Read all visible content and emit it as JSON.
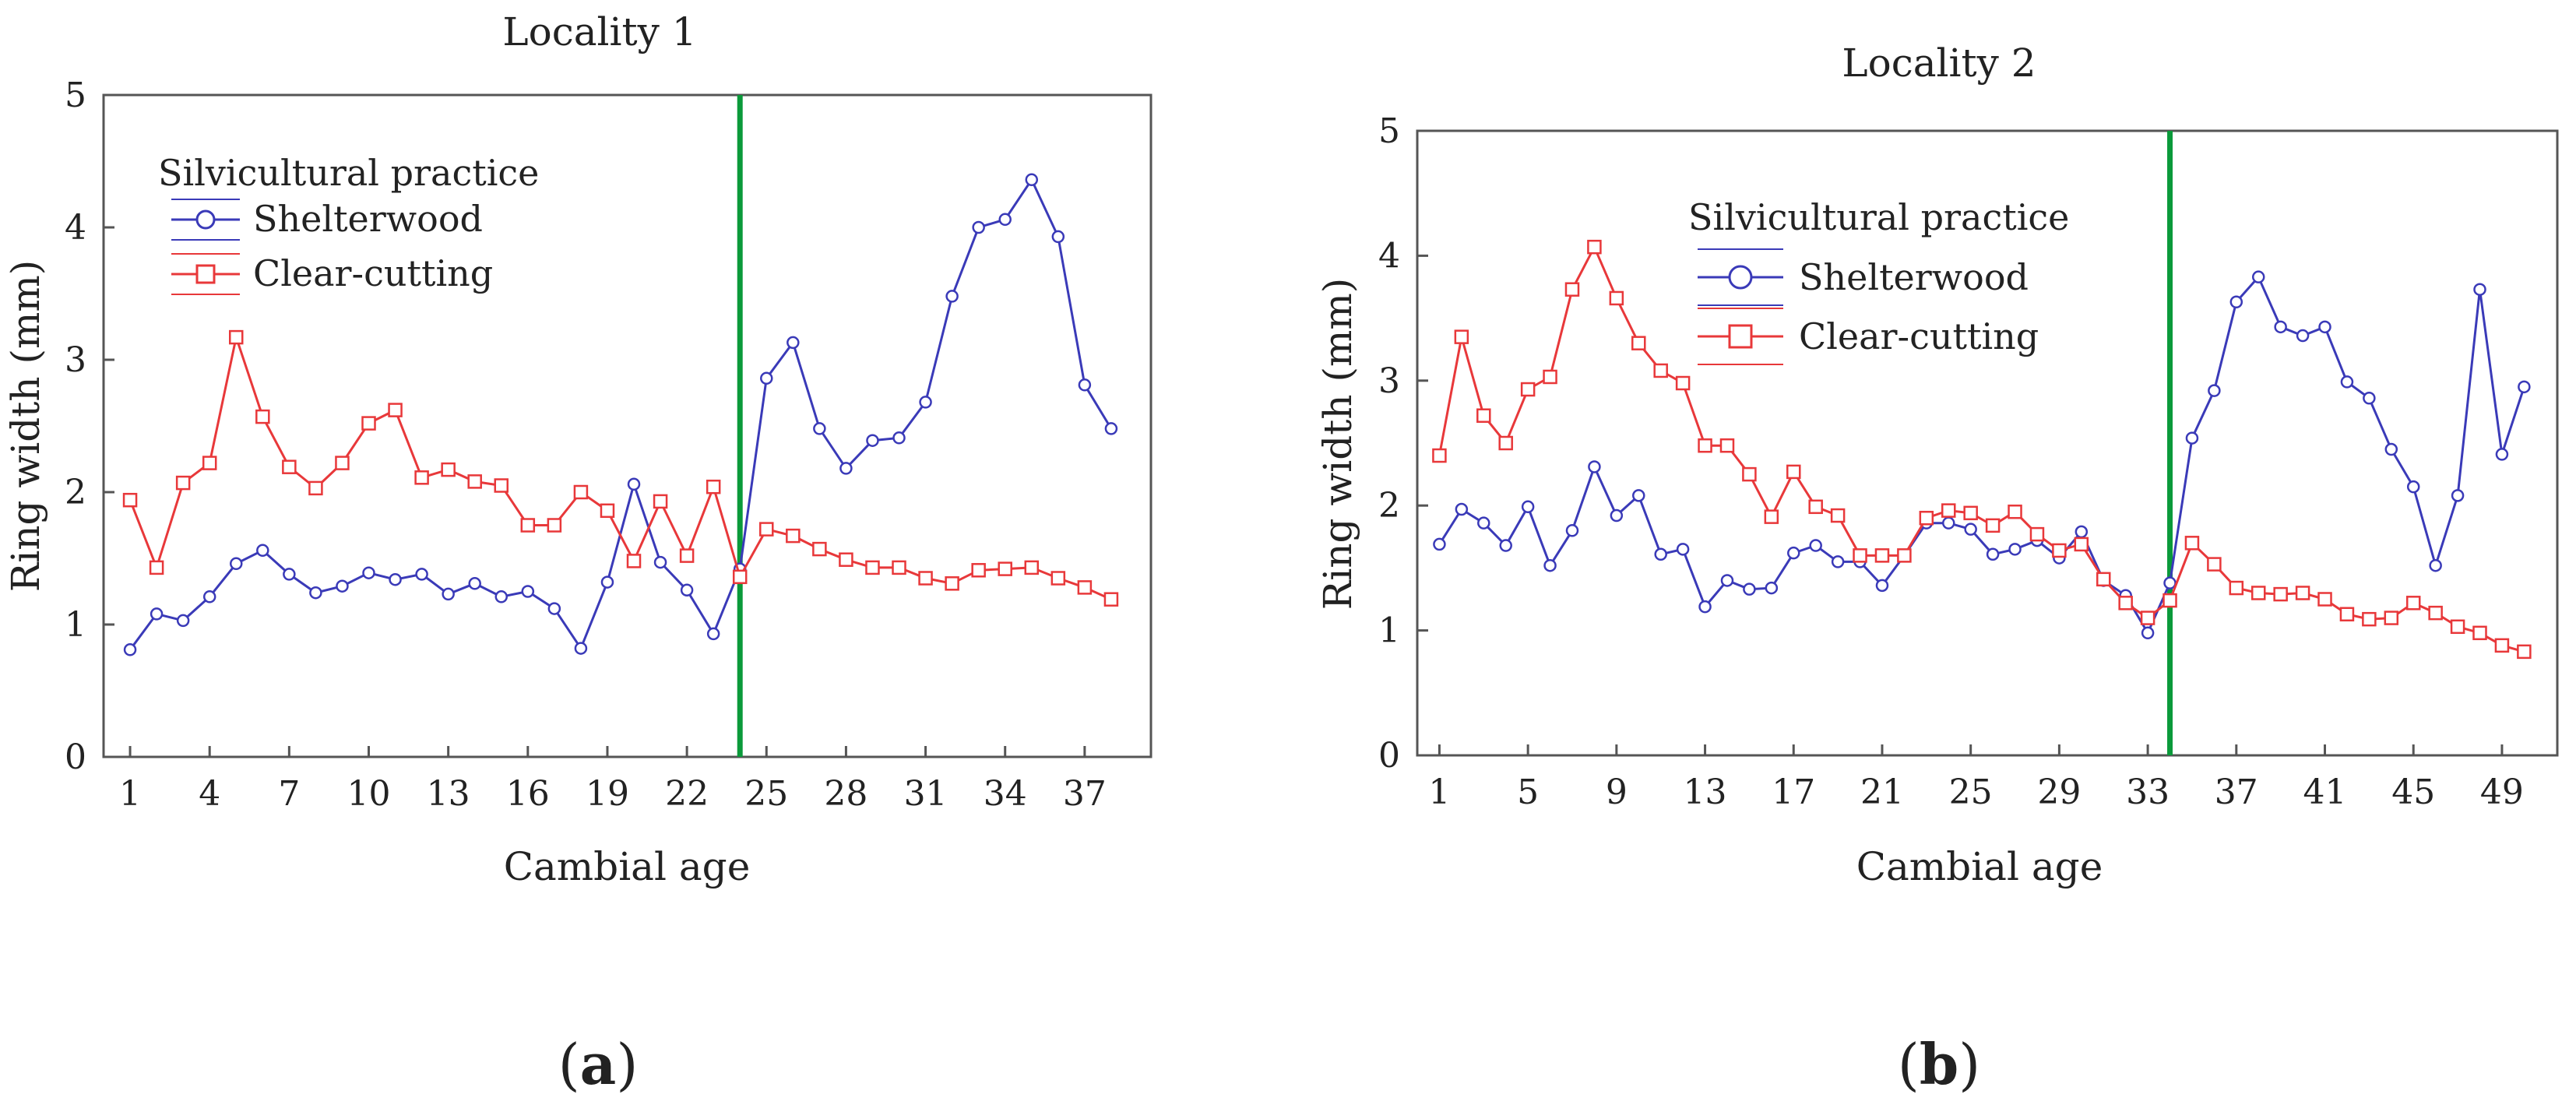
{
  "figure_labels": [
    {
      "letter": "a",
      "open": "(",
      "close": ")"
    },
    {
      "letter": "b",
      "open": "(",
      "close": ")"
    }
  ],
  "chart_data": [
    {
      "type": "line",
      "title": "Locality 1",
      "xlabel": "Cambial age",
      "ylabel": "Ring width (mm)",
      "xlim": [
        0,
        39.5
      ],
      "ylim": [
        0,
        5
      ],
      "yticks": [
        0,
        1,
        2,
        3,
        4,
        5
      ],
      "xticks": [
        1,
        4,
        7,
        10,
        13,
        16,
        19,
        22,
        25,
        28,
        31,
        34,
        37
      ],
      "vline_x": 24,
      "vline_color": "#0a9a3a",
      "legend": {
        "title": "Silvicultural practice",
        "position": "top-left"
      },
      "series": [
        {
          "name": "Shelterwood",
          "color": "#3a3ab8",
          "marker": "circle",
          "x": [
            1,
            2,
            3,
            4,
            5,
            6,
            7,
            8,
            9,
            10,
            11,
            12,
            13,
            14,
            15,
            16,
            17,
            18,
            19,
            20,
            21,
            22,
            23,
            24,
            25,
            26,
            27,
            28,
            29,
            30,
            31,
            32,
            33,
            34,
            35,
            36,
            37,
            38
          ],
          "values": [
            0.81,
            1.08,
            1.03,
            1.21,
            1.46,
            1.56,
            1.38,
            1.24,
            1.29,
            1.39,
            1.34,
            1.38,
            1.23,
            1.31,
            1.21,
            1.25,
            1.12,
            0.82,
            1.32,
            2.06,
            1.47,
            1.26,
            0.93,
            1.42,
            2.86,
            3.13,
            2.48,
            2.18,
            2.39,
            2.41,
            2.68,
            3.48,
            4.0,
            4.06,
            4.36,
            3.93,
            2.81,
            2.48
          ]
        },
        {
          "name": "Clear-cutting",
          "color": "#e8383a",
          "marker": "square",
          "x": [
            1,
            2,
            3,
            4,
            5,
            6,
            7,
            8,
            9,
            10,
            11,
            12,
            13,
            14,
            15,
            16,
            17,
            18,
            19,
            20,
            21,
            22,
            23,
            24,
            25,
            26,
            27,
            28,
            29,
            30,
            31,
            32,
            33,
            34,
            35,
            36,
            37,
            38
          ],
          "values": [
            1.94,
            1.43,
            2.07,
            2.22,
            3.17,
            2.57,
            2.19,
            2.03,
            2.22,
            2.52,
            2.62,
            2.11,
            2.17,
            2.08,
            2.05,
            1.75,
            1.75,
            2.0,
            1.86,
            1.48,
            1.93,
            1.52,
            2.04,
            1.36,
            1.72,
            1.67,
            1.57,
            1.49,
            1.43,
            1.43,
            1.35,
            1.31,
            1.41,
            1.42,
            1.43,
            1.35,
            1.28,
            1.19
          ]
        }
      ]
    },
    {
      "type": "line",
      "title": "Locality 2",
      "xlabel": "Cambial age",
      "ylabel": "Ring width (mm)",
      "xlim": [
        0,
        51.5
      ],
      "ylim": [
        0,
        5
      ],
      "yticks": [
        0,
        1,
        2,
        3,
        4,
        5
      ],
      "xticks": [
        1,
        5,
        9,
        13,
        17,
        21,
        25,
        29,
        33,
        37,
        41,
        45,
        49
      ],
      "vline_x": 34,
      "vline_color": "#0a9a3a",
      "legend": {
        "title": "Silvicultural practice",
        "position": "top-center"
      },
      "series": [
        {
          "name": "Shelterwood",
          "color": "#3a3ab8",
          "marker": "circle",
          "x": [
            1,
            2,
            3,
            4,
            5,
            6,
            7,
            8,
            9,
            10,
            11,
            12,
            13,
            14,
            15,
            16,
            17,
            18,
            19,
            20,
            21,
            22,
            23,
            24,
            25,
            26,
            27,
            28,
            29,
            30,
            31,
            32,
            33,
            34,
            35,
            36,
            37,
            38,
            39,
            40,
            41,
            42,
            43,
            44,
            45,
            46,
            47,
            48,
            49,
            50
          ],
          "values": [
            1.69,
            1.97,
            1.86,
            1.68,
            1.99,
            1.52,
            1.8,
            2.31,
            1.92,
            2.08,
            1.61,
            1.65,
            1.19,
            1.4,
            1.33,
            1.34,
            1.62,
            1.68,
            1.55,
            1.55,
            1.36,
            1.6,
            1.86,
            1.86,
            1.81,
            1.61,
            1.65,
            1.72,
            1.58,
            1.79,
            1.4,
            1.28,
            0.98,
            1.38,
            2.54,
            2.92,
            3.63,
            3.83,
            3.43,
            3.36,
            3.43,
            2.99,
            2.86,
            2.45,
            2.15,
            1.52,
            2.08,
            3.73,
            2.41,
            2.95
          ]
        },
        {
          "name": "Clear-cutting",
          "color": "#e8383a",
          "marker": "square",
          "x": [
            1,
            2,
            3,
            4,
            5,
            6,
            7,
            8,
            9,
            10,
            11,
            12,
            13,
            14,
            15,
            16,
            17,
            18,
            19,
            20,
            21,
            22,
            23,
            24,
            25,
            26,
            27,
            28,
            29,
            30,
            31,
            32,
            33,
            34,
            35,
            36,
            37,
            38,
            39,
            40,
            41,
            42,
            43,
            44,
            45,
            46,
            47,
            48,
            49,
            50
          ],
          "values": [
            2.4,
            3.35,
            2.72,
            2.5,
            2.93,
            3.03,
            3.73,
            4.07,
            3.66,
            3.3,
            3.08,
            2.98,
            2.48,
            2.48,
            2.25,
            1.91,
            2.27,
            1.99,
            1.92,
            1.6,
            1.6,
            1.6,
            1.9,
            1.96,
            1.94,
            1.84,
            1.95,
            1.77,
            1.64,
            1.69,
            1.41,
            1.22,
            1.1,
            1.24,
            1.7,
            1.53,
            1.34,
            1.3,
            1.29,
            1.3,
            1.25,
            1.13,
            1.09,
            1.1,
            1.22,
            1.14,
            1.03,
            0.98,
            0.88,
            0.83
          ]
        }
      ]
    }
  ]
}
